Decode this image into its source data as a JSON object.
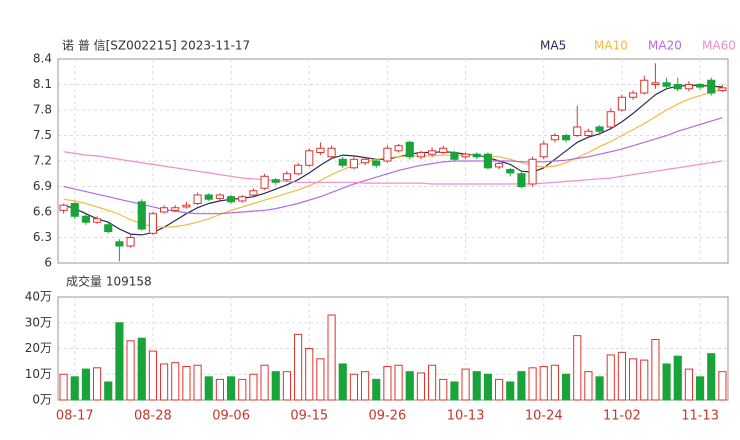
{
  "chart_data": [
    {
      "type": "candlestick",
      "title": "诺 普 信[SZ002215] 2023-11-17",
      "up_color": "#e0342e",
      "down_color": "#1aa33b",
      "categories": [
        null,
        "08-17",
        null,
        null,
        null,
        null,
        null,
        null,
        "08-28",
        null,
        null,
        null,
        null,
        null,
        null,
        "09-06",
        null,
        null,
        null,
        null,
        null,
        null,
        "09-15",
        null,
        null,
        null,
        null,
        null,
        null,
        "09-26",
        null,
        null,
        null,
        null,
        null,
        null,
        "10-13",
        null,
        null,
        null,
        null,
        null,
        null,
        "10-24",
        null,
        null,
        null,
        null,
        null,
        null,
        "11-02",
        null,
        null,
        null,
        null,
        null,
        null,
        "11-13",
        null,
        null
      ],
      "open": [
        6.62,
        6.7,
        6.55,
        6.48,
        6.45,
        6.25,
        6.2,
        6.72,
        6.35,
        6.6,
        6.62,
        6.66,
        6.7,
        6.8,
        6.76,
        6.78,
        6.73,
        6.8,
        6.88,
        6.98,
        6.98,
        7.05,
        7.15,
        7.3,
        7.25,
        7.22,
        7.12,
        7.18,
        7.2,
        7.2,
        7.32,
        7.42,
        7.25,
        7.28,
        7.3,
        7.3,
        7.25,
        7.28,
        7.28,
        7.13,
        7.1,
        7.05,
        6.93,
        7.25,
        7.45,
        7.5,
        7.5,
        7.5,
        7.6,
        7.6,
        7.8,
        7.95,
        8.0,
        8.1,
        8.12,
        8.1,
        8.05,
        8.1,
        8.15,
        8.03
      ],
      "close": [
        6.68,
        6.55,
        6.48,
        6.52,
        6.37,
        6.2,
        6.3,
        6.4,
        6.58,
        6.65,
        6.65,
        6.68,
        6.8,
        6.75,
        6.8,
        6.72,
        6.78,
        6.85,
        7.02,
        6.95,
        7.05,
        7.15,
        7.32,
        7.35,
        7.35,
        7.15,
        7.22,
        7.22,
        7.15,
        7.35,
        7.38,
        7.25,
        7.3,
        7.32,
        7.35,
        7.22,
        7.28,
        7.25,
        7.12,
        7.17,
        7.06,
        6.9,
        7.22,
        7.4,
        7.5,
        7.45,
        7.6,
        7.55,
        7.55,
        7.78,
        7.95,
        8.0,
        8.15,
        8.12,
        8.08,
        8.05,
        8.1,
        8.07,
        8.0,
        8.06
      ],
      "high": [
        6.7,
        6.72,
        6.58,
        6.55,
        6.47,
        6.28,
        6.33,
        6.75,
        6.6,
        6.68,
        6.68,
        6.72,
        6.83,
        6.82,
        6.82,
        6.8,
        6.8,
        6.88,
        7.05,
        7.0,
        7.08,
        7.18,
        7.35,
        7.42,
        7.38,
        7.25,
        7.25,
        7.25,
        7.22,
        7.38,
        7.4,
        7.44,
        7.32,
        7.36,
        7.38,
        7.32,
        7.3,
        7.3,
        7.3,
        7.2,
        7.12,
        7.08,
        7.25,
        7.44,
        7.53,
        7.52,
        7.85,
        7.58,
        7.62,
        7.82,
        7.98,
        8.03,
        8.2,
        8.35,
        8.18,
        8.18,
        8.14,
        8.12,
        8.18,
        8.1
      ],
      "low": [
        6.58,
        6.52,
        6.45,
        6.46,
        6.35,
        6.02,
        6.18,
        6.38,
        6.33,
        6.58,
        6.6,
        6.64,
        6.68,
        6.73,
        6.74,
        6.7,
        6.71,
        6.78,
        6.86,
        6.92,
        6.96,
        7.03,
        7.13,
        7.27,
        7.22,
        7.12,
        7.1,
        7.15,
        7.12,
        7.18,
        7.3,
        7.22,
        7.22,
        7.25,
        7.28,
        7.2,
        7.22,
        7.22,
        7.1,
        7.1,
        7.02,
        6.88,
        6.9,
        7.22,
        7.42,
        7.42,
        7.48,
        7.48,
        7.52,
        7.58,
        7.78,
        7.92,
        7.98,
        8.05,
        8.04,
        8.02,
        8.02,
        8.04,
        7.97,
        8.01
      ],
      "series": [
        {
          "name": "MA5",
          "color": "#2a2a5a",
          "values": [
            6.68,
            6.64,
            6.58,
            6.52,
            6.48,
            6.4,
            6.34,
            6.33,
            6.36,
            6.42,
            6.5,
            6.58,
            6.65,
            6.7,
            6.73,
            6.75,
            6.76,
            6.78,
            6.82,
            6.87,
            6.92,
            6.98,
            7.06,
            7.15,
            7.23,
            7.27,
            7.26,
            7.24,
            7.22,
            7.22,
            7.25,
            7.28,
            7.3,
            7.3,
            7.31,
            7.3,
            7.28,
            7.27,
            7.24,
            7.2,
            7.16,
            7.08,
            7.07,
            7.12,
            7.22,
            7.32,
            7.42,
            7.48,
            7.52,
            7.58,
            7.66,
            7.76,
            7.87,
            7.98,
            8.05,
            8.08,
            8.09,
            8.09,
            8.08,
            8.07
          ]
        },
        {
          "name": "MA10",
          "color": "#f5b942",
          "values": [
            6.75,
            6.73,
            6.7,
            6.66,
            6.62,
            6.57,
            6.51,
            6.46,
            6.43,
            6.42,
            6.43,
            6.45,
            6.48,
            6.52,
            6.57,
            6.62,
            6.66,
            6.7,
            6.74,
            6.78,
            6.82,
            6.86,
            6.91,
            6.97,
            7.04,
            7.1,
            7.15,
            7.19,
            7.22,
            7.24,
            7.25,
            7.26,
            7.26,
            7.26,
            7.27,
            7.27,
            7.27,
            7.27,
            7.26,
            7.25,
            7.22,
            7.18,
            7.15,
            7.13,
            7.14,
            7.18,
            7.24,
            7.3,
            7.37,
            7.43,
            7.5,
            7.57,
            7.64,
            7.72,
            7.8,
            7.87,
            7.93,
            7.97,
            8.01,
            8.04
          ]
        },
        {
          "name": "MA20",
          "color": "#b36be0",
          "values": [
            6.9,
            6.87,
            6.84,
            6.81,
            6.78,
            6.75,
            6.72,
            6.69,
            6.66,
            6.63,
            6.61,
            6.59,
            6.58,
            6.58,
            6.58,
            6.59,
            6.6,
            6.61,
            6.62,
            6.64,
            6.67,
            6.7,
            6.74,
            6.78,
            6.83,
            6.88,
            6.93,
            6.97,
            7.01,
            7.05,
            7.09,
            7.12,
            7.15,
            7.17,
            7.19,
            7.2,
            7.2,
            7.2,
            7.2,
            7.2,
            7.2,
            7.19,
            7.19,
            7.19,
            7.2,
            7.21,
            7.23,
            7.25,
            7.28,
            7.31,
            7.34,
            7.38,
            7.42,
            7.46,
            7.5,
            7.55,
            7.59,
            7.63,
            7.67,
            7.71
          ]
        },
        {
          "name": "MA60",
          "color": "#f08ccf",
          "values": [
            7.31,
            7.29,
            7.27,
            7.26,
            7.24,
            7.22,
            7.2,
            7.18,
            7.16,
            7.14,
            7.12,
            7.1,
            7.08,
            7.06,
            7.04,
            7.02,
            7.0,
            6.99,
            6.98,
            6.97,
            6.96,
            6.95,
            6.95,
            6.95,
            6.95,
            6.95,
            6.95,
            6.94,
            6.94,
            6.94,
            6.94,
            6.94,
            6.94,
            6.93,
            6.93,
            6.93,
            6.93,
            6.93,
            6.93,
            6.93,
            6.93,
            6.93,
            6.93,
            6.94,
            6.95,
            6.96,
            6.97,
            6.98,
            6.99,
            7.0,
            7.02,
            7.04,
            7.06,
            7.08,
            7.1,
            7.12,
            7.14,
            7.16,
            7.18,
            7.2
          ]
        }
      ],
      "ylim": [
        6,
        8.4
      ],
      "yticks": [
        6,
        6.3,
        6.6,
        6.9,
        7.2,
        7.5,
        7.8,
        8.1,
        8.4
      ],
      "grid": true
    },
    {
      "type": "bar",
      "title": "成交量 109158",
      "values": [
        10,
        9,
        12,
        12.5,
        7,
        30,
        23,
        24,
        19,
        14,
        14.5,
        13,
        13.5,
        9,
        8,
        9,
        8,
        10,
        13.5,
        11,
        11,
        25.5,
        20,
        16,
        33,
        14,
        10,
        11,
        8,
        13,
        13.5,
        11,
        10.5,
        13.5,
        8,
        7,
        12,
        11,
        10,
        8,
        7,
        11,
        12.5,
        13,
        13.5,
        10,
        25,
        11,
        9,
        17.5,
        18.5,
        16,
        15.5,
        23.5,
        14,
        17,
        12,
        9,
        18,
        11
      ],
      "ylim": [
        0,
        40
      ],
      "yticks": [
        {
          "value": 0,
          "label": "0万"
        },
        {
          "value": 10,
          "label": "10万"
        },
        {
          "value": 20,
          "label": "20万"
        },
        {
          "value": 30,
          "label": "30万"
        },
        {
          "value": 40,
          "label": "40万"
        }
      ],
      "grid": true
    }
  ]
}
